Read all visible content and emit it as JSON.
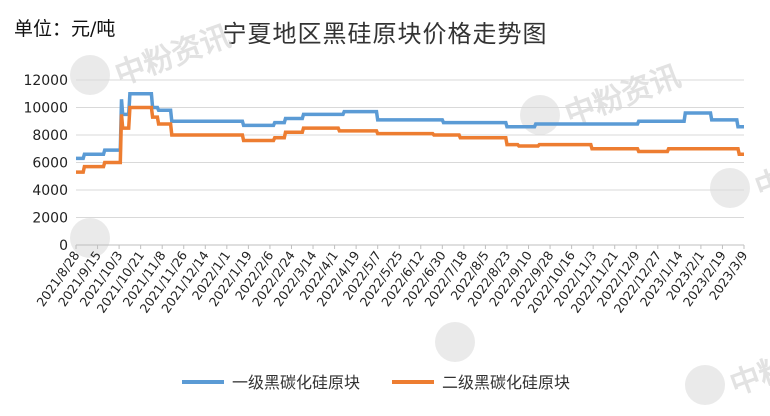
{
  "unit": "单位：元/吨",
  "watermark": "中粉资讯",
  "chart_data": {
    "type": "line",
    "title": "宁夏地区黑硅原块价格走势图",
    "xlabel": "",
    "ylabel": "",
    "ylim": [
      0,
      12000
    ],
    "yticks": [
      0,
      2000,
      4000,
      6000,
      8000,
      10000,
      12000
    ],
    "grid": true,
    "legend": "bottom",
    "x_start": "2021/8/28",
    "x_end": "2023/3/9",
    "x_tick_labels": [
      "2021/8/28",
      "2021/9/15",
      "2021/10/3",
      "2021/10/21",
      "2021/11/8",
      "2021/11/26",
      "2021/12/14",
      "2022/1/1",
      "2022/1/19",
      "2022/2/6",
      "2022/2/24",
      "2022/3/14",
      "2022/4/1",
      "2022/4/19",
      "2022/5/7",
      "2022/5/25",
      "2022/6/12",
      "2022/6/30",
      "2022/7/18",
      "2022/8/5",
      "2022/8/23",
      "2022/9/10",
      "2022/9/28",
      "2022/10/16",
      "2022/11/3",
      "2022/11/21",
      "2022/12/9",
      "2022/12/27",
      "2023/1/14",
      "2023/2/1",
      "2023/2/19",
      "2023/3/9"
    ],
    "series": [
      {
        "name": "一级黑碳化硅原块",
        "color": "#5b9bd5",
        "points": [
          [
            "2021/8/28",
            6300
          ],
          [
            "2021/9/3",
            6300
          ],
          [
            "2021/9/4",
            6600
          ],
          [
            "2021/9/20",
            6600
          ],
          [
            "2021/9/21",
            6900
          ],
          [
            "2021/10/4",
            6900
          ],
          [
            "2021/10/5",
            10600
          ],
          [
            "2021/10/6",
            9500
          ],
          [
            "2021/10/11",
            9500
          ],
          [
            "2021/10/12",
            11000
          ],
          [
            "2021/10/30",
            11000
          ],
          [
            "2021/10/31",
            10000
          ],
          [
            "2021/11/4",
            10000
          ],
          [
            "2021/11/5",
            9800
          ],
          [
            "2021/11/15",
            9800
          ],
          [
            "2021/11/16",
            9000
          ],
          [
            "2022/1/14",
            9000
          ],
          [
            "2022/1/15",
            8700
          ],
          [
            "2022/2/9",
            8700
          ],
          [
            "2022/2/10",
            8900
          ],
          [
            "2022/2/18",
            8900
          ],
          [
            "2022/2/19",
            9200
          ],
          [
            "2022/3/5",
            9200
          ],
          [
            "2022/3/6",
            9500
          ],
          [
            "2022/4/8",
            9500
          ],
          [
            "2022/4/9",
            9700
          ],
          [
            "2022/5/6",
            9700
          ],
          [
            "2022/5/7",
            9100
          ],
          [
            "2022/6/30",
            9100
          ],
          [
            "2022/7/1",
            8900
          ],
          [
            "2022/8/22",
            8900
          ],
          [
            "2022/8/23",
            8600
          ],
          [
            "2022/9/15",
            8600
          ],
          [
            "2022/9/16",
            8800
          ],
          [
            "2022/12/10",
            8800
          ],
          [
            "2022/12/11",
            9000
          ],
          [
            "2023/1/18",
            9000
          ],
          [
            "2023/1/19",
            9600
          ],
          [
            "2023/2/9",
            9600
          ],
          [
            "2023/2/10",
            9100
          ],
          [
            "2023/3/3",
            9100
          ],
          [
            "2023/3/4",
            8600
          ],
          [
            "2023/3/9",
            8600
          ]
        ]
      },
      {
        "name": "二级黑碳化硅原块",
        "color": "#ed7d31",
        "points": [
          [
            "2021/8/28",
            5300
          ],
          [
            "2021/9/3",
            5300
          ],
          [
            "2021/9/4",
            5700
          ],
          [
            "2021/9/20",
            5700
          ],
          [
            "2021/9/21",
            6000
          ],
          [
            "2021/10/4",
            6000
          ],
          [
            "2021/10/5",
            9500
          ],
          [
            "2021/10/6",
            8500
          ],
          [
            "2021/10/11",
            8500
          ],
          [
            "2021/10/12",
            10000
          ],
          [
            "2021/10/30",
            10000
          ],
          [
            "2021/10/31",
            9300
          ],
          [
            "2021/11/4",
            9300
          ],
          [
            "2021/11/5",
            8800
          ],
          [
            "2021/11/15",
            8800
          ],
          [
            "2021/11/16",
            8000
          ],
          [
            "2022/1/14",
            8000
          ],
          [
            "2022/1/15",
            7600
          ],
          [
            "2022/2/9",
            7600
          ],
          [
            "2022/2/10",
            7800
          ],
          [
            "2022/2/18",
            7800
          ],
          [
            "2022/2/19",
            8200
          ],
          [
            "2022/3/5",
            8200
          ],
          [
            "2022/3/6",
            8500
          ],
          [
            "2022/4/4",
            8500
          ],
          [
            "2022/4/5",
            8300
          ],
          [
            "2022/5/6",
            8300
          ],
          [
            "2022/5/7",
            8100
          ],
          [
            "2022/6/22",
            8100
          ],
          [
            "2022/6/23",
            8000
          ],
          [
            "2022/7/14",
            8000
          ],
          [
            "2022/7/15",
            7800
          ],
          [
            "2022/8/22",
            7800
          ],
          [
            "2022/8/23",
            7300
          ],
          [
            "2022/9/1",
            7300
          ],
          [
            "2022/9/2",
            7200
          ],
          [
            "2022/9/18",
            7200
          ],
          [
            "2022/9/19",
            7300
          ],
          [
            "2022/11/1",
            7300
          ],
          [
            "2022/11/2",
            7000
          ],
          [
            "2022/12/10",
            7000
          ],
          [
            "2022/12/11",
            6800
          ],
          [
            "2023/1/4",
            6800
          ],
          [
            "2023/1/5",
            7000
          ],
          [
            "2023/3/4",
            7000
          ],
          [
            "2023/3/5",
            6600
          ],
          [
            "2023/3/9",
            6600
          ]
        ]
      }
    ]
  }
}
